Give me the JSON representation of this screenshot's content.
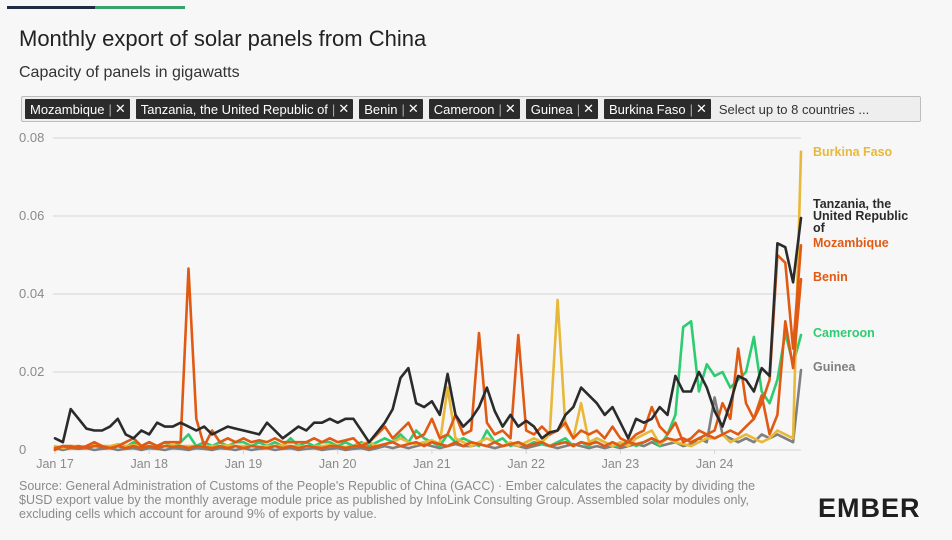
{
  "header": {
    "title": "Monthly export of solar panels from China",
    "subtitle": "Capacity of panels in gigawatts"
  },
  "selector": {
    "chips": [
      "Mozambique",
      "Tanzania, the United Republic of",
      "Benin",
      "Cameroon",
      "Guinea",
      "Burkina Faso"
    ],
    "placeholder": "Select up to 8 countries ..."
  },
  "footer": {
    "source": "Source: General Administration of Customs of the People's Republic of China (GACC) · Ember calculates the capacity by dividing the $USD export value by the monthly average module price as published by InfoLink Consulting Group. Assembled solar modules only, excluding cells which account for around 9% of exports by value.",
    "logo": "EMBER"
  },
  "colors": {
    "burkina": "#e8b83a",
    "tanzania": "#2b2b2b",
    "mozambique": "#e05a14",
    "benin": "#e05a14",
    "cameroon": "#2ecc71",
    "guinea": "#7f7f7f",
    "grid": "#d4d4d4",
    "axis_text": "#8a8a8a"
  },
  "chart_data": {
    "type": "line",
    "x_start": "2017-01",
    "x_end": "2024-12",
    "x_ticks": [
      "Jan 17",
      "Jan 18",
      "Jan 19",
      "Jan 20",
      "Jan 21",
      "Jan 22",
      "Jan 23",
      "Jan 24"
    ],
    "y_ticks": [
      "0",
      "0.02",
      "0.04",
      "0.06",
      "0.08"
    ],
    "ylim": [
      0,
      0.08
    ],
    "grid": true,
    "legend": "right-end labels",
    "series": [
      {
        "name": "Burkina Faso",
        "color_key": "burkina",
        "values": [
          0.001,
          0.0005,
          0.001,
          0.001,
          0.0008,
          0.0012,
          0.001,
          0.001,
          0.0015,
          0.001,
          0.0012,
          0.001,
          0.001,
          0.0008,
          0.001,
          0.0012,
          0.001,
          0.001,
          0.001,
          0.0008,
          0.001,
          0.001,
          0.0012,
          0.001,
          0.001,
          0.001,
          0.0008,
          0.001,
          0.001,
          0.0012,
          0.001,
          0.001,
          0.0008,
          0.001,
          0.001,
          0.0012,
          0.001,
          0.0008,
          0.001,
          0.0015,
          0.002,
          0.001,
          0.0015,
          0.002,
          0.003,
          0.002,
          0.0015,
          0.002,
          0.0025,
          0.0016,
          0.016,
          0.003,
          0.002,
          0.001,
          0.002,
          0.003,
          0.002,
          0.001,
          0.002,
          0.001,
          0.002,
          0.003,
          0.002,
          0.004,
          0.0385,
          0.006,
          0.003,
          0.012,
          0.002,
          0.003,
          0.002,
          0.001,
          0.002,
          0.001,
          0.003,
          0.004,
          0.005,
          0.0015,
          0.003,
          0.002,
          0.0015,
          0.001,
          0.002,
          0.003,
          0.003,
          0.004,
          0.002,
          0.003,
          0.004,
          0.003,
          0.002,
          0.003,
          0.005,
          0.004,
          0.003,
          0.0765
        ]
      },
      {
        "name": "Tanzania, the United Republic of",
        "color_key": "tanzania",
        "values": [
          0.003,
          0.002,
          0.0105,
          0.008,
          0.0055,
          0.005,
          0.005,
          0.006,
          0.008,
          0.004,
          0.003,
          0.005,
          0.004,
          0.007,
          0.006,
          0.006,
          0.007,
          0.006,
          0.005,
          0.006,
          0.004,
          0.005,
          0.006,
          0.0055,
          0.005,
          0.0045,
          0.004,
          0.007,
          0.005,
          0.003,
          0.0045,
          0.006,
          0.005,
          0.007,
          0.007,
          0.008,
          0.007,
          0.008,
          0.008,
          0.005,
          0.002,
          0.0045,
          0.007,
          0.0105,
          0.0185,
          0.021,
          0.012,
          0.011,
          0.0125,
          0.009,
          0.0195,
          0.009,
          0.006,
          0.008,
          0.011,
          0.016,
          0.01,
          0.006,
          0.009,
          0.006,
          0.0075,
          0.006,
          0.003,
          0.0045,
          0.005,
          0.009,
          0.011,
          0.016,
          0.014,
          0.012,
          0.009,
          0.011,
          0.007,
          0.003,
          0.008,
          0.007,
          0.008,
          0.011,
          0.009,
          0.019,
          0.015,
          0.015,
          0.02,
          0.016,
          0.01,
          0.006,
          0.012,
          0.019,
          0.018,
          0.015,
          0.021,
          0.019,
          0.053,
          0.052,
          0.043,
          0.0595
        ]
      },
      {
        "name": "Mozambique",
        "color_key": "mozambique",
        "values": [
          0.0005,
          0.001,
          0.0005,
          0.001,
          0.0005,
          0.001,
          0.0008,
          0.0005,
          0.001,
          0.0005,
          0.001,
          0.0005,
          0.001,
          0.0005,
          0.001,
          0.0008,
          0.001,
          0.0005,
          0.001,
          0.0008,
          0.0005,
          0.001,
          0.0005,
          0.001,
          0.0005,
          0.001,
          0.0008,
          0.0005,
          0.001,
          0.0005,
          0.001,
          0.0005,
          0.001,
          0.0008,
          0.0005,
          0.001,
          0.001,
          0.0005,
          0.001,
          0.001,
          0.0005,
          0.001,
          0.0015,
          0.002,
          0.001,
          0.0015,
          0.002,
          0.001,
          0.002,
          0.0015,
          0.001,
          0.002,
          0.001,
          0.002,
          0.0015,
          0.001,
          0.002,
          0.001,
          0.0015,
          0.002,
          0.001,
          0.0015,
          0.002,
          0.001,
          0.0015,
          0.002,
          0.001,
          0.002,
          0.0015,
          0.002,
          0.001,
          0.002,
          0.001,
          0.002,
          0.0015,
          0.002,
          0.003,
          0.002,
          0.003,
          0.0025,
          0.003,
          0.002,
          0.003,
          0.004,
          0.003,
          0.004,
          0.005,
          0.004,
          0.006,
          0.008,
          0.012,
          0.018,
          0.05,
          0.048,
          0.026,
          0.0525
        ]
      },
      {
        "name": "Benin",
        "color_key": "benin",
        "values": [
          0.0,
          0.001,
          0.001,
          0.0005,
          0.001,
          0.002,
          0.001,
          0.0005,
          0.001,
          0.002,
          0.003,
          0.001,
          0.002,
          0.001,
          0.002,
          0.002,
          0.002,
          0.0465,
          0.008,
          0.001,
          0.005,
          0.002,
          0.003,
          0.002,
          0.003,
          0.002,
          0.0025,
          0.002,
          0.003,
          0.002,
          0.002,
          0.002,
          0.002,
          0.003,
          0.002,
          0.003,
          0.002,
          0.0025,
          0.003,
          0.001,
          0.002,
          0.004,
          0.006,
          0.003,
          0.005,
          0.007,
          0.003,
          0.004,
          0.008,
          0.003,
          0.004,
          0.009,
          0.004,
          0.005,
          0.03,
          0.007,
          0.004,
          0.005,
          0.003,
          0.0295,
          0.005,
          0.004,
          0.006,
          0.004,
          0.005,
          0.007,
          0.003,
          0.005,
          0.004,
          0.005,
          0.003,
          0.006,
          0.003,
          0.002,
          0.004,
          0.005,
          0.011,
          0.006,
          0.004,
          0.007,
          0.002,
          0.003,
          0.005,
          0.004,
          0.005,
          0.012,
          0.008,
          0.026,
          0.012,
          0.008,
          0.014,
          0.004,
          0.009,
          0.033,
          0.021,
          0.0438
        ]
      },
      {
        "name": "Cameroon",
        "color_key": "cameroon",
        "values": [
          0.0005,
          0.001,
          0.0005,
          0.001,
          0.0005,
          0.0015,
          0.001,
          0.0005,
          0.001,
          0.0008,
          0.002,
          0.001,
          0.002,
          0.001,
          0.002,
          0.0008,
          0.002,
          0.004,
          0.001,
          0.002,
          0.001,
          0.002,
          0.001,
          0.002,
          0.002,
          0.001,
          0.002,
          0.001,
          0.002,
          0.001,
          0.003,
          0.001,
          0.002,
          0.001,
          0.002,
          0.002,
          0.001,
          0.002,
          0.001,
          0.002,
          0.001,
          0.002,
          0.003,
          0.002,
          0.004,
          0.002,
          0.005,
          0.003,
          0.002,
          0.001,
          0.004,
          0.002,
          0.003,
          0.002,
          0.001,
          0.005,
          0.002,
          0.003,
          0.001,
          0.002,
          0.001,
          0.002,
          0.0015,
          0.001,
          0.002,
          0.003,
          0.001,
          0.002,
          0.001,
          0.003,
          0.002,
          0.001,
          0.001,
          0.0025,
          0.001,
          0.002,
          0.003,
          0.001,
          0.004,
          0.009,
          0.0315,
          0.033,
          0.015,
          0.022,
          0.019,
          0.02,
          0.016,
          0.018,
          0.02,
          0.029,
          0.015,
          0.012,
          0.018,
          0.03,
          0.022,
          0.0295
        ]
      },
      {
        "name": "Guinea",
        "color_key": "guinea",
        "values": [
          0.0005,
          0.0,
          0.0005,
          0.0003,
          0.0005,
          0.0,
          0.0003,
          0.0005,
          0.0,
          0.0003,
          0.0005,
          0.0,
          0.0005,
          0.0003,
          0.0,
          0.0005,
          0.0003,
          0.0,
          0.0005,
          0.0003,
          0.0,
          0.0005,
          0.0003,
          0.0,
          0.0005,
          0.0,
          0.0003,
          0.0005,
          0.0,
          0.0003,
          0.0005,
          0.0,
          0.0003,
          0.0005,
          0.0,
          0.0003,
          0.0005,
          0.0,
          0.0003,
          0.0005,
          0.0,
          0.0005,
          0.001,
          0.0005,
          0.001,
          0.0005,
          0.001,
          0.0015,
          0.001,
          0.0005,
          0.001,
          0.0015,
          0.001,
          0.001,
          0.0015,
          0.001,
          0.0005,
          0.001,
          0.0015,
          0.001,
          0.0005,
          0.001,
          0.0015,
          0.001,
          0.0005,
          0.001,
          0.0015,
          0.001,
          0.0005,
          0.001,
          0.0005,
          0.001,
          0.0005,
          0.001,
          0.0015,
          0.001,
          0.002,
          0.001,
          0.0015,
          0.002,
          0.001,
          0.0015,
          0.003,
          0.002,
          0.0135,
          0.004,
          0.003,
          0.002,
          0.003,
          0.002,
          0.004,
          0.003,
          0.004,
          0.003,
          0.002,
          0.0205
        ]
      }
    ],
    "end_labels": [
      {
        "lines": [
          "Burkina Faso"
        ],
        "color_key": "burkina"
      },
      {
        "lines": [
          "Tanzania, the",
          "United Republic",
          "of"
        ],
        "color_key": "tanzania"
      },
      {
        "lines": [
          "Mozambique"
        ],
        "color_key": "mozambique"
      },
      {
        "lines": [
          "Benin"
        ],
        "color_key": "benin"
      },
      {
        "lines": [
          "Cameroon"
        ],
        "color_key": "cameroon"
      },
      {
        "lines": [
          "Guinea"
        ],
        "color_key": "guinea"
      }
    ]
  }
}
